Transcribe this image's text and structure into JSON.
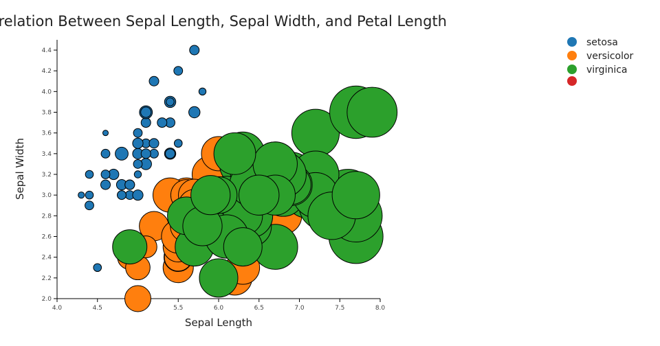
{
  "chart_data": {
    "type": "scatter",
    "title": "Correlation Between Sepal Length, Sepal Width, and Petal Length",
    "xlabel": "Sepal Length",
    "ylabel": "Sepal Width",
    "size_variable": "Petal Length",
    "xlim": [
      4.0,
      8.0
    ],
    "ylim": [
      2.0,
      4.4
    ],
    "xticks": [
      "4.0",
      "4.5",
      "5.0",
      "5.5",
      "6.0",
      "6.5",
      "7.0",
      "7.5",
      "8.0"
    ],
    "yticks": [
      "2.0",
      "2.2",
      "2.4",
      "2.6",
      "2.8",
      "3.0",
      "3.2",
      "3.4",
      "3.6",
      "3.8",
      "4.0",
      "4.2",
      "4.4"
    ],
    "grid": false,
    "legend_position": "top-right",
    "legend": [
      {
        "name": "setosa",
        "color": "#1f77b4"
      },
      {
        "name": "versicolor",
        "color": "#ff7f0e"
      },
      {
        "name": "virginica",
        "color": "#2ca02c"
      },
      {
        "name": "",
        "color": "#d62728"
      }
    ],
    "series": [
      {
        "name": "setosa",
        "color": "#1f77b4",
        "points": [
          [
            5.1,
            3.5,
            1.4
          ],
          [
            4.9,
            3.0,
            1.4
          ],
          [
            4.7,
            3.2,
            1.3
          ],
          [
            4.6,
            3.1,
            1.5
          ],
          [
            5.0,
            3.6,
            1.4
          ],
          [
            5.4,
            3.9,
            1.7
          ],
          [
            4.6,
            3.4,
            1.4
          ],
          [
            5.0,
            3.4,
            1.5
          ],
          [
            4.4,
            2.9,
            1.4
          ],
          [
            4.9,
            3.1,
            1.5
          ],
          [
            5.4,
            3.7,
            1.5
          ],
          [
            4.8,
            3.4,
            1.6
          ],
          [
            4.8,
            3.0,
            1.4
          ],
          [
            4.3,
            3.0,
            1.1
          ],
          [
            5.8,
            4.0,
            1.2
          ],
          [
            5.7,
            4.4,
            1.5
          ],
          [
            5.4,
            3.9,
            1.3
          ],
          [
            5.1,
            3.5,
            1.4
          ],
          [
            5.7,
            3.8,
            1.7
          ],
          [
            5.1,
            3.8,
            1.5
          ],
          [
            5.4,
            3.4,
            1.7
          ],
          [
            5.1,
            3.7,
            1.5
          ],
          [
            4.6,
            3.6,
            1.0
          ],
          [
            5.1,
            3.3,
            1.7
          ],
          [
            4.8,
            3.4,
            1.9
          ],
          [
            5.0,
            3.0,
            1.6
          ],
          [
            5.0,
            3.4,
            1.6
          ],
          [
            5.2,
            3.5,
            1.5
          ],
          [
            5.2,
            3.4,
            1.4
          ],
          [
            4.7,
            3.2,
            1.6
          ],
          [
            4.8,
            3.1,
            1.6
          ],
          [
            5.4,
            3.4,
            1.5
          ],
          [
            5.2,
            4.1,
            1.5
          ],
          [
            5.5,
            4.2,
            1.4
          ],
          [
            4.9,
            3.1,
            1.5
          ],
          [
            5.0,
            3.2,
            1.2
          ],
          [
            5.5,
            3.5,
            1.3
          ],
          [
            4.9,
            3.1,
            1.5
          ],
          [
            4.4,
            3.0,
            1.3
          ],
          [
            5.1,
            3.4,
            1.5
          ],
          [
            5.0,
            3.5,
            1.3
          ],
          [
            4.5,
            2.3,
            1.3
          ],
          [
            4.4,
            3.2,
            1.3
          ],
          [
            5.0,
            3.5,
            1.6
          ],
          [
            5.1,
            3.8,
            1.9
          ],
          [
            4.8,
            3.0,
            1.4
          ],
          [
            5.1,
            3.8,
            1.6
          ],
          [
            4.6,
            3.2,
            1.4
          ],
          [
            5.3,
            3.7,
            1.5
          ],
          [
            5.0,
            3.3,
            1.4
          ]
        ]
      },
      {
        "name": "versicolor",
        "color": "#ff7f0e",
        "points": [
          [
            7.0,
            3.2,
            4.7
          ],
          [
            6.4,
            3.2,
            4.5
          ],
          [
            6.9,
            3.1,
            4.9
          ],
          [
            5.5,
            2.3,
            4.0
          ],
          [
            6.5,
            2.8,
            4.6
          ],
          [
            5.7,
            2.8,
            4.5
          ],
          [
            6.3,
            3.3,
            4.7
          ],
          [
            4.9,
            2.4,
            3.3
          ],
          [
            6.6,
            2.9,
            4.6
          ],
          [
            5.2,
            2.7,
            3.9
          ],
          [
            5.0,
            2.0,
            3.5
          ],
          [
            5.9,
            3.0,
            4.2
          ],
          [
            6.0,
            2.2,
            4.0
          ],
          [
            6.1,
            2.9,
            4.7
          ],
          [
            5.6,
            2.9,
            3.6
          ],
          [
            6.7,
            3.1,
            4.4
          ],
          [
            5.6,
            3.0,
            4.5
          ],
          [
            5.8,
            2.7,
            4.1
          ],
          [
            6.2,
            2.2,
            4.5
          ],
          [
            5.6,
            2.5,
            3.9
          ],
          [
            5.9,
            3.2,
            4.8
          ],
          [
            6.1,
            2.8,
            4.0
          ],
          [
            6.3,
            2.5,
            4.9
          ],
          [
            6.1,
            2.8,
            4.7
          ],
          [
            6.4,
            2.9,
            4.3
          ],
          [
            6.6,
            3.0,
            4.4
          ],
          [
            6.8,
            2.8,
            4.8
          ],
          [
            6.7,
            3.0,
            5.0
          ],
          [
            6.0,
            2.9,
            4.5
          ],
          [
            5.7,
            2.6,
            3.5
          ],
          [
            5.5,
            2.4,
            3.8
          ],
          [
            5.5,
            2.4,
            3.7
          ],
          [
            5.8,
            2.7,
            3.9
          ],
          [
            6.0,
            2.7,
            5.1
          ],
          [
            5.4,
            3.0,
            4.5
          ],
          [
            6.0,
            3.4,
            4.5
          ],
          [
            6.7,
            3.1,
            4.7
          ],
          [
            6.3,
            2.3,
            4.4
          ],
          [
            5.6,
            3.0,
            4.1
          ],
          [
            5.5,
            2.5,
            4.0
          ],
          [
            5.5,
            2.6,
            4.4
          ],
          [
            6.1,
            3.0,
            4.6
          ],
          [
            5.8,
            2.6,
            4.0
          ],
          [
            5.0,
            2.3,
            3.3
          ],
          [
            5.6,
            2.7,
            4.2
          ],
          [
            5.7,
            3.0,
            4.2
          ],
          [
            5.7,
            2.9,
            4.2
          ],
          [
            6.2,
            2.9,
            4.3
          ],
          [
            5.1,
            2.5,
            3.0
          ],
          [
            5.7,
            2.8,
            4.1
          ]
        ]
      },
      {
        "name": "virginica",
        "color": "#2ca02c",
        "points": [
          [
            6.3,
            3.3,
            6.0
          ],
          [
            5.8,
            2.7,
            5.1
          ],
          [
            7.1,
            3.0,
            5.9
          ],
          [
            6.3,
            2.9,
            5.6
          ],
          [
            6.5,
            3.0,
            5.8
          ],
          [
            7.6,
            3.0,
            6.6
          ],
          [
            4.9,
            2.5,
            4.5
          ],
          [
            7.3,
            2.9,
            6.3
          ],
          [
            6.7,
            2.5,
            5.8
          ],
          [
            7.2,
            3.6,
            6.1
          ],
          [
            6.5,
            3.2,
            5.1
          ],
          [
            6.4,
            2.7,
            5.3
          ],
          [
            6.8,
            3.0,
            5.5
          ],
          [
            5.7,
            2.5,
            5.0
          ],
          [
            5.8,
            2.8,
            5.1
          ],
          [
            6.4,
            3.2,
            5.3
          ],
          [
            6.5,
            3.0,
            5.5
          ],
          [
            7.7,
            3.8,
            6.7
          ],
          [
            7.7,
            2.6,
            6.9
          ],
          [
            6.0,
            2.2,
            5.0
          ],
          [
            6.9,
            3.2,
            5.7
          ],
          [
            5.6,
            2.8,
            4.9
          ],
          [
            7.7,
            2.8,
            6.7
          ],
          [
            6.3,
            2.7,
            4.9
          ],
          [
            6.7,
            3.3,
            5.7
          ],
          [
            7.2,
            3.2,
            6.0
          ],
          [
            6.2,
            2.8,
            4.8
          ],
          [
            6.1,
            3.0,
            4.9
          ],
          [
            6.4,
            2.8,
            5.6
          ],
          [
            7.2,
            3.0,
            5.8
          ],
          [
            7.4,
            2.8,
            6.1
          ],
          [
            7.9,
            3.8,
            6.4
          ],
          [
            6.4,
            2.8,
            5.6
          ],
          [
            6.3,
            2.8,
            5.1
          ],
          [
            6.1,
            2.6,
            5.6
          ],
          [
            7.7,
            3.0,
            6.1
          ],
          [
            6.3,
            3.4,
            5.6
          ],
          [
            6.4,
            3.1,
            5.5
          ],
          [
            6.0,
            3.0,
            4.8
          ],
          [
            6.9,
            3.1,
            5.4
          ],
          [
            6.7,
            3.1,
            5.6
          ],
          [
            6.9,
            3.1,
            5.1
          ],
          [
            5.8,
            2.7,
            5.1
          ],
          [
            6.8,
            3.2,
            5.9
          ],
          [
            6.7,
            3.3,
            5.7
          ],
          [
            6.7,
            3.0,
            5.2
          ],
          [
            6.3,
            2.5,
            5.0
          ],
          [
            6.5,
            3.0,
            5.2
          ],
          [
            6.2,
            3.4,
            5.4
          ],
          [
            5.9,
            3.0,
            5.1
          ]
        ]
      }
    ]
  }
}
